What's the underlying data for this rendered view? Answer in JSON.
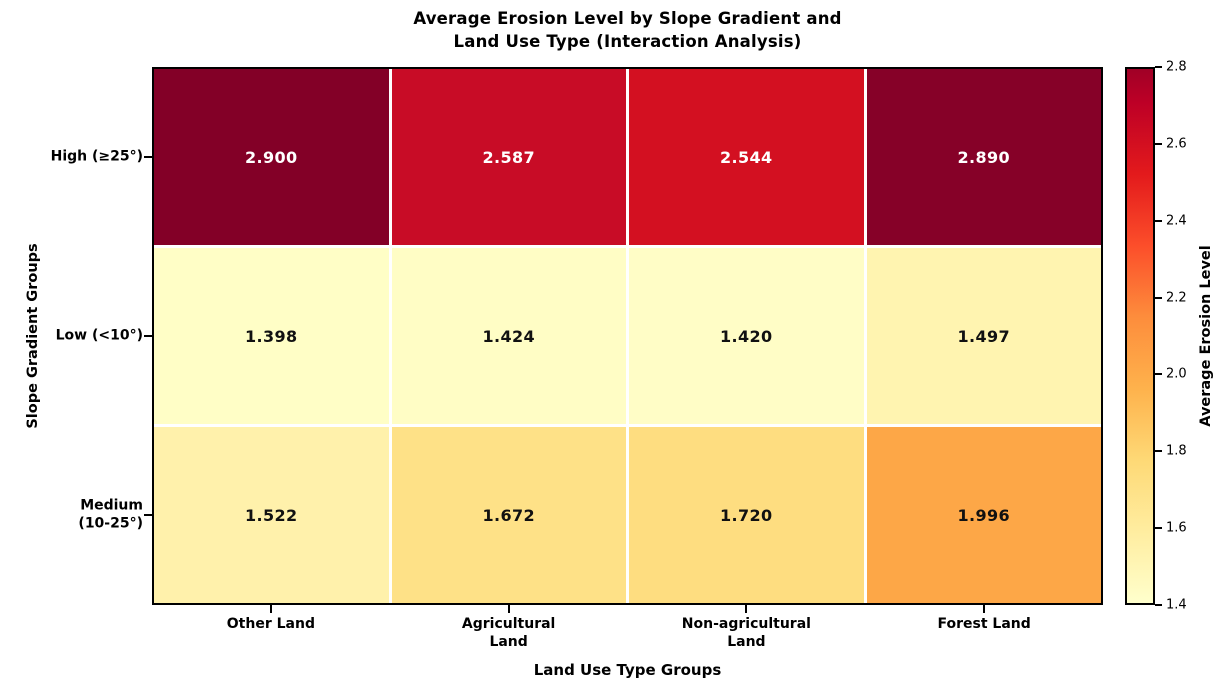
{
  "figure": {
    "title_line1": "Average Erosion Level by Slope Gradient and",
    "title_line2": "Land Use Type (Interaction Analysis)",
    "xlabel": "Land Use Type Groups",
    "ylabel": "Slope Gradient Groups"
  },
  "chart_data": {
    "type": "heatmap",
    "title": "Average Erosion Level by Slope Gradient and Land Use Type (Interaction Analysis)",
    "xlabel": "Land Use Type Groups",
    "ylabel": "Slope Gradient Groups",
    "x_categories": [
      "Other Land",
      "Agricultural Land",
      "Non-agricultural Land",
      "Forest Land"
    ],
    "x_tick_lines": [
      [
        "Other Land"
      ],
      [
        "Agricultural",
        "Land"
      ],
      [
        "Non-agricultural",
        "Land"
      ],
      [
        "Forest Land"
      ]
    ],
    "y_categories": [
      "High (≥25°)",
      "Low (<10°)",
      "Medium (10-25°)"
    ],
    "y_tick_lines": [
      [
        "High (≥25°)"
      ],
      [
        "Low (<10°)"
      ],
      [
        "Medium",
        "(10-25°)"
      ]
    ],
    "values": [
      [
        2.9,
        2.587,
        2.544,
        2.89
      ],
      [
        1.398,
        1.424,
        1.42,
        1.497
      ],
      [
        1.522,
        1.672,
        1.72,
        1.996
      ]
    ],
    "value_labels": [
      [
        "2.900",
        "2.587",
        "2.544",
        "2.890"
      ],
      [
        "1.398",
        "1.424",
        "1.420",
        "1.497"
      ],
      [
        "1.522",
        "1.672",
        "1.720",
        "1.996"
      ]
    ],
    "cell_colors": [
      [
        "#830027",
        "#c80c26",
        "#d31021",
        "#860128"
      ],
      [
        "#fffec6",
        "#fffdc5",
        "#fffdc6",
        "#fff4b0"
      ],
      [
        "#fff1ab",
        "#fee187",
        "#fedd80",
        "#fda747"
      ]
    ],
    "cell_text_colors": [
      "#ffffff",
      "#111111",
      "#111111"
    ],
    "colormap": "YlOrRd",
    "grid": false,
    "legend": false,
    "colorbar": {
      "label": "Average Erosion Level",
      "min": 1.4,
      "max": 2.8,
      "tick_labels_top_to_bottom": [
        "2.8",
        "2.6",
        "2.4",
        "2.2",
        "2.0",
        "1.8",
        "1.6",
        "1.4"
      ],
      "gradient_stops_bottom_to_top": [
        {
          "color": "#ffffcc",
          "pos": 0
        },
        {
          "color": "#ffeda0",
          "pos": 13.3
        },
        {
          "color": "#fed976",
          "pos": 26.7
        },
        {
          "color": "#feb24c",
          "pos": 40.1
        },
        {
          "color": "#fd8d3c",
          "pos": 53.5
        },
        {
          "color": "#fc4e2a",
          "pos": 66.9
        },
        {
          "color": "#e31a1c",
          "pos": 80.3
        },
        {
          "color": "#bd0026",
          "pos": 93.7
        },
        {
          "color": "#a00026",
          "pos": 100
        }
      ]
    }
  }
}
